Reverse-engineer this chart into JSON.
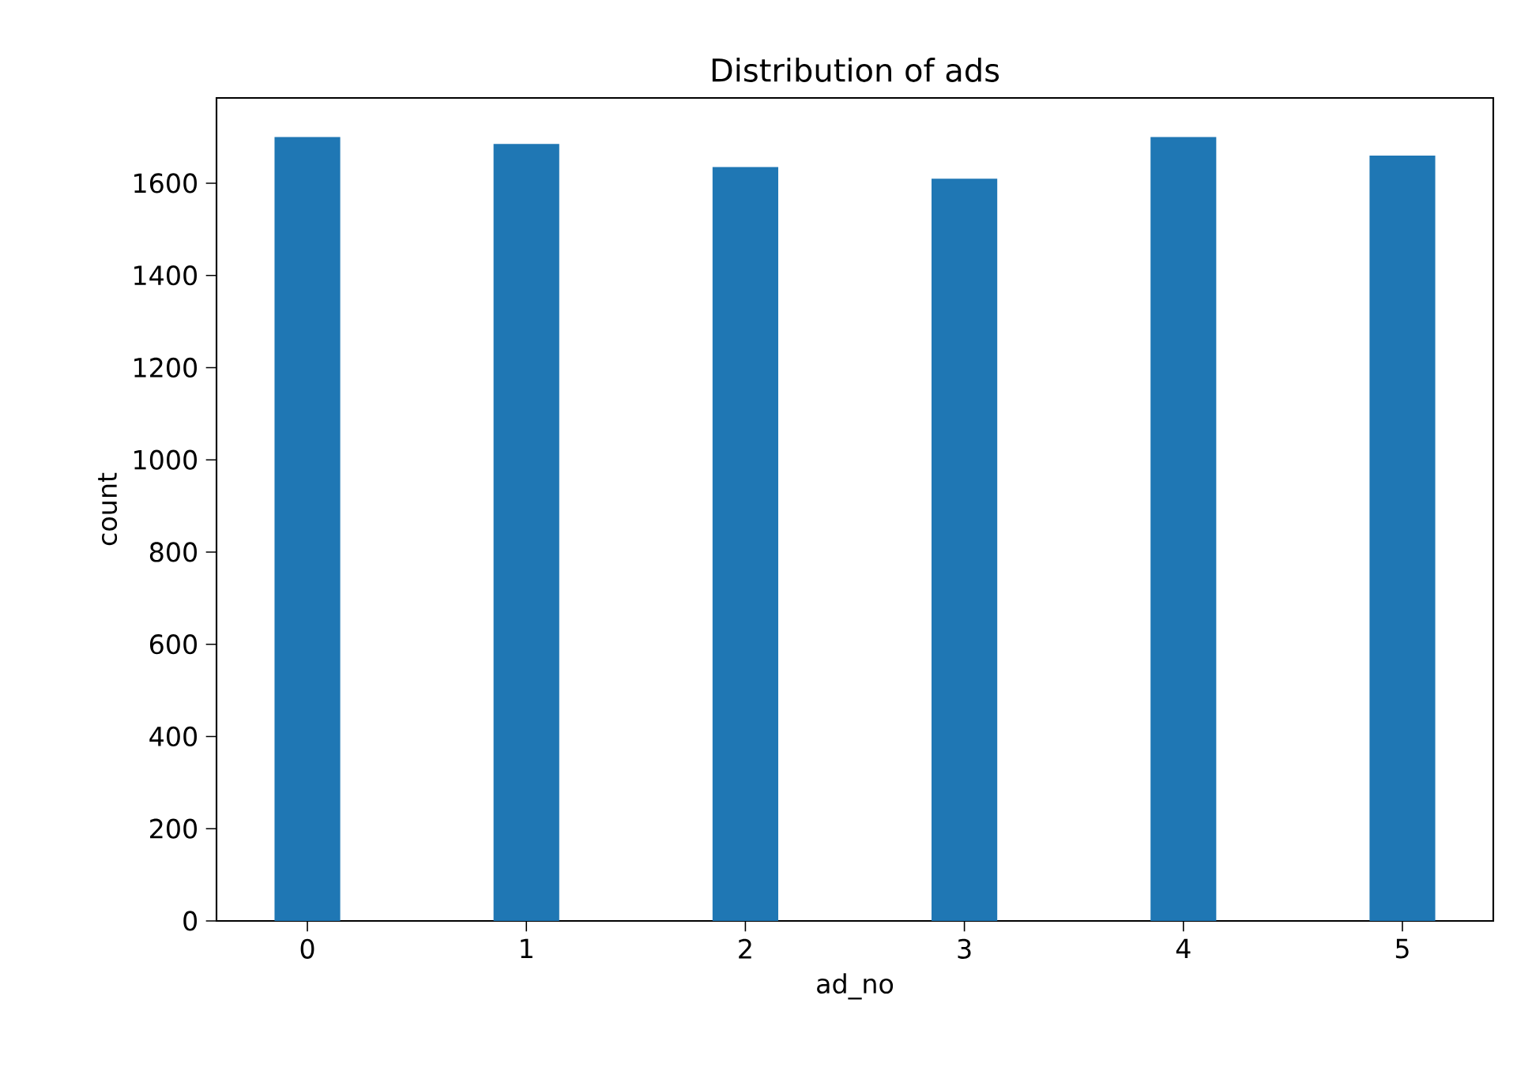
{
  "chart_data": {
    "type": "bar",
    "title": "Distribution of ads",
    "xlabel": "ad_no",
    "ylabel": "count",
    "categories": [
      "0",
      "1",
      "2",
      "3",
      "4",
      "5"
    ],
    "values": [
      1700,
      1685,
      1635,
      1610,
      1700,
      1660
    ],
    "color": "#1f77b4",
    "ylim": [
      0,
      1785
    ],
    "yticks": [
      0,
      200,
      400,
      600,
      800,
      1000,
      1200,
      1400,
      1600
    ],
    "grid": false
  }
}
